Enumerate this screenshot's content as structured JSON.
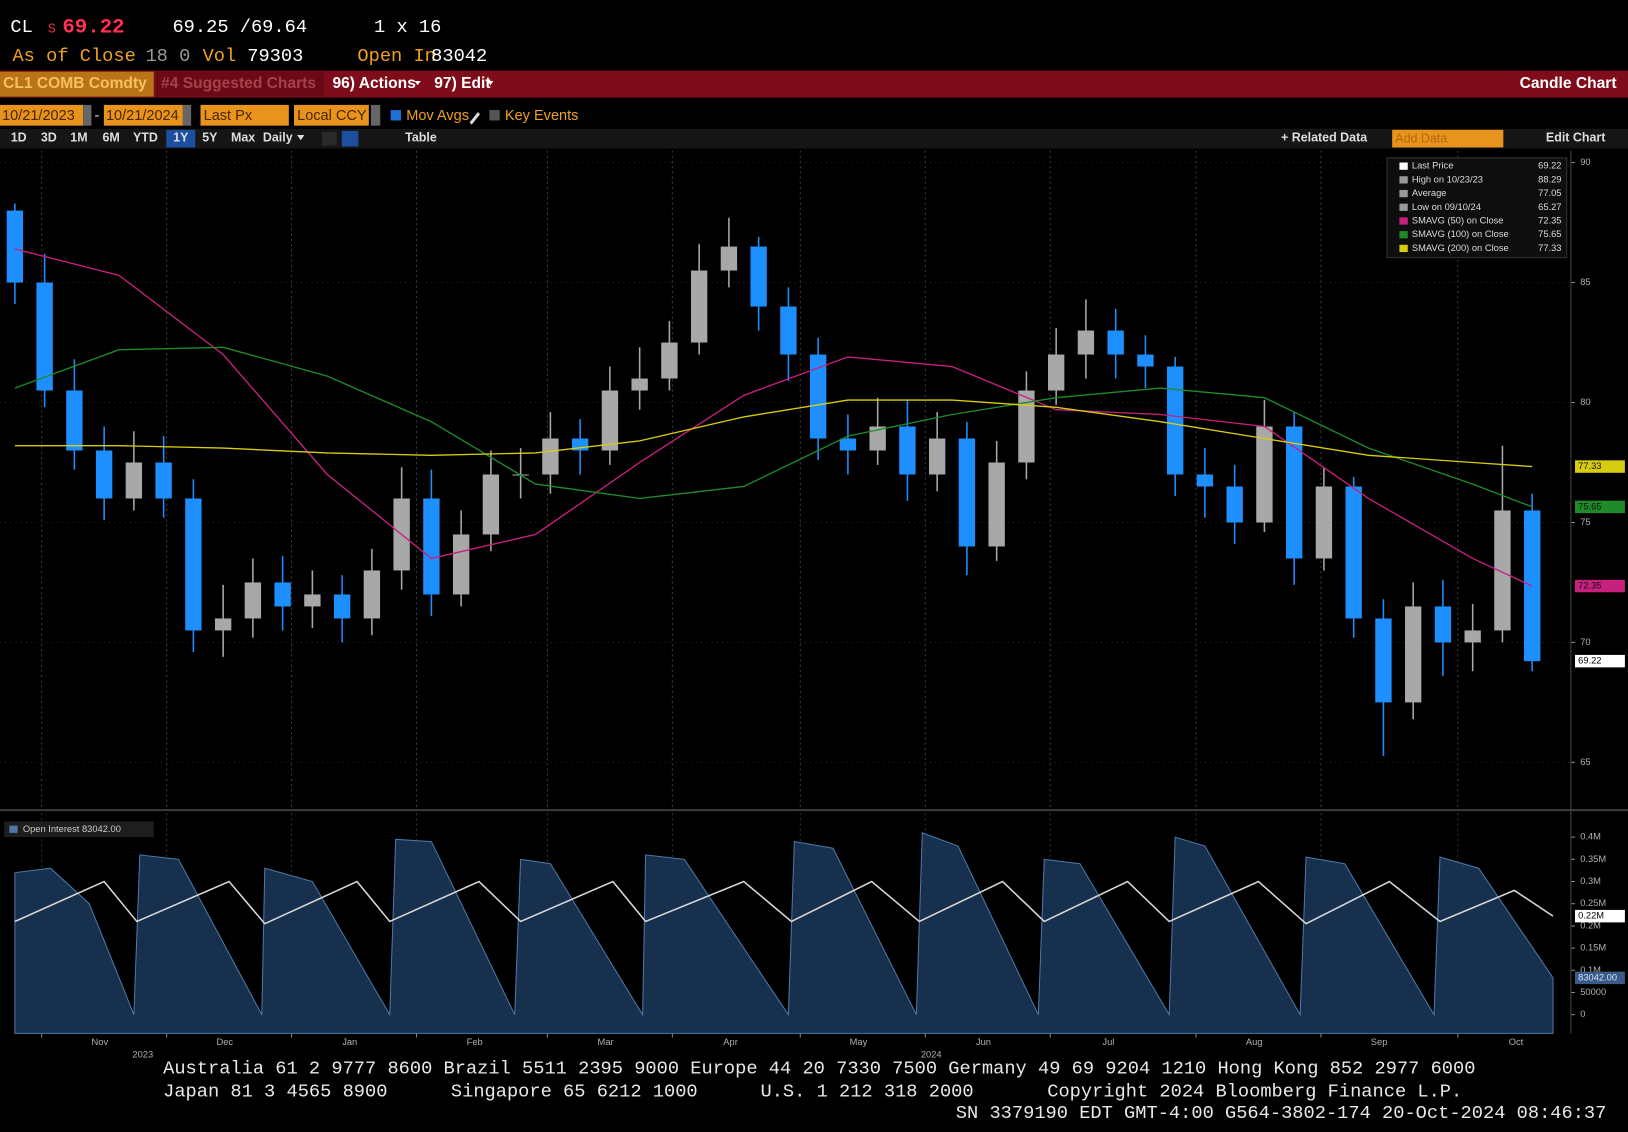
{
  "header": {
    "ticker": "CL",
    "price_flag": "S",
    "last": "69.22",
    "bid_ask": "69.25 /69.64",
    "size": "1 x 16",
    "close_label": "As of Close",
    "time": "18 0",
    "vol_label": "Vol",
    "vol": "79303",
    "oi_label": "Open In",
    "oi": "83042"
  },
  "toolbar": {
    "security": "CL1 COMB Comdty",
    "suggested": "#4 Suggested Charts",
    "actions": "96) Actions",
    "edit": "97) Edit",
    "chart_kind": "Candle Chart"
  },
  "controls": {
    "start": "10/21/2023",
    "separator": "-",
    "end": "10/21/2024",
    "field": "Last Px",
    "currency": "Local CCY",
    "mov_avgs": "Mov Avgs",
    "key_events": "Key Events",
    "periods": [
      "1D",
      "3D",
      "1M",
      "6M",
      "YTD",
      "1Y",
      "5Y",
      "Max"
    ],
    "active_period": 5,
    "frequency": "Daily",
    "table": "Table",
    "related": "+ Related Data",
    "add_data": "Add Data",
    "edit_chart": "Edit Chart"
  },
  "chart_data": [
    {
      "type": "candlestick",
      "xlim": [
        -0.5,
        52.3
      ],
      "ylim": [
        63.1,
        90.5
      ],
      "yticks": [
        65,
        70,
        75,
        80,
        85,
        90
      ],
      "up_color": "#a8a8a8",
      "down_color": "#1e8fff",
      "grid": true,
      "open": [
        88,
        85,
        80.5,
        78,
        76,
        77.5,
        76,
        70.5,
        71,
        72.5,
        71.5,
        72,
        71,
        73,
        76,
        72,
        74.5,
        77,
        77,
        78.5,
        78,
        80.5,
        81,
        82.5,
        85.5,
        86.5,
        84,
        82,
        78.5,
        78,
        79,
        77,
        78.5,
        74,
        77.5,
        80.5,
        82,
        83,
        82,
        81.5,
        77,
        76.5,
        75,
        79,
        73.5,
        76.5,
        71,
        67.5,
        71.5,
        70,
        70.5,
        75.5
      ],
      "high": [
        88.29,
        86.2,
        81.8,
        79,
        78.8,
        78.6,
        76.8,
        72.4,
        73.5,
        73.6,
        73,
        72.8,
        73.9,
        77.3,
        77.2,
        75.5,
        78,
        78.1,
        79.6,
        79.3,
        81.5,
        82.3,
        83.4,
        86.6,
        87.7,
        86.9,
        84.8,
        82.7,
        79.5,
        80.2,
        80.1,
        79.6,
        79.2,
        78.4,
        81.3,
        83.1,
        84.3,
        83.9,
        82.8,
        81.9,
        78.1,
        77.4,
        80.1,
        79.6,
        77.3,
        76.9,
        71.8,
        72.5,
        72.6,
        71.6,
        78.2,
        76.2
      ],
      "low": [
        84.1,
        79.8,
        77.2,
        75.1,
        75.5,
        75.2,
        69.6,
        69.4,
        70.2,
        70.5,
        70.6,
        70,
        70.3,
        72.2,
        71.1,
        71.5,
        73.8,
        76,
        76.2,
        77,
        77.4,
        79.7,
        80.5,
        82,
        84.8,
        83,
        80.9,
        77.6,
        77,
        77.4,
        75.9,
        76.3,
        72.8,
        73.4,
        76.8,
        79.9,
        81,
        81,
        80.6,
        76.1,
        75.2,
        74.1,
        74.6,
        72.4,
        73,
        70.2,
        65.27,
        66.8,
        68.6,
        68.8,
        70,
        68.8
      ],
      "close": [
        85,
        80.5,
        78,
        76,
        77.5,
        76,
        70.5,
        71,
        72.5,
        71.5,
        72,
        71,
        73,
        76,
        72,
        74.5,
        77,
        77,
        78.5,
        78,
        80.5,
        81,
        82.5,
        85.5,
        86.5,
        84,
        82,
        78.5,
        78,
        79,
        77,
        78.5,
        74,
        77.5,
        80.5,
        82,
        83,
        82,
        81.5,
        77,
        76.5,
        75,
        79,
        73.5,
        76.5,
        71,
        67.5,
        71.5,
        70,
        70.5,
        75.5,
        69.22
      ],
      "last_tag": "69.22",
      "stats": [
        {
          "label": "Last Price",
          "value": "69.22"
        },
        {
          "label": "High on 10/23/23",
          "value": "88.29"
        },
        {
          "label": "Average",
          "value": "77.05"
        },
        {
          "label": "Low on 09/10/24",
          "value": "65.27"
        }
      ],
      "series": [
        {
          "name": "SMAVG (50)  on Close",
          "color": "#c8207e",
          "tag": "72.35",
          "x": [
            0,
            3.5,
            7,
            10.5,
            14,
            17.5,
            21,
            24.5,
            28,
            31.5,
            35,
            38.5,
            42,
            45.5,
            49,
            51
          ],
          "values": [
            86.4,
            85.3,
            82,
            77,
            73.5,
            74.5,
            77.5,
            80.3,
            81.9,
            81.5,
            79.7,
            79.5,
            79,
            76,
            73.5,
            72.35
          ]
        },
        {
          "name": "SMAVG (100)  on Close",
          "color": "#1e8a2a",
          "tag": "75.65",
          "x": [
            0,
            3.5,
            7,
            10.5,
            14,
            17.5,
            21,
            24.5,
            28,
            31.5,
            35,
            38.5,
            42,
            45.5,
            49,
            51
          ],
          "values": [
            80.6,
            82.2,
            82.3,
            81.1,
            79.2,
            76.6,
            76,
            76.5,
            78.6,
            79.5,
            80.2,
            80.6,
            80.2,
            78.1,
            76.6,
            75.65
          ]
        },
        {
          "name": "SMAVG (200)  on Close",
          "color": "#d8cc10",
          "tag": "77.33",
          "x": [
            0,
            3.5,
            7,
            10.5,
            14,
            17.5,
            21,
            24.5,
            28,
            31.5,
            35,
            38.5,
            42,
            45.5,
            49,
            51
          ],
          "values": [
            78.2,
            78.2,
            78.1,
            77.9,
            77.8,
            77.9,
            78.4,
            79.4,
            80.1,
            80.1,
            79.8,
            79.2,
            78.5,
            77.8,
            77.5,
            77.33
          ]
        }
      ]
    },
    {
      "type": "area",
      "xlim": [
        -0.5,
        52.3
      ],
      "ylim": [
        -42000,
        454000
      ],
      "yticks": [
        0,
        50000,
        {
          "value": 100000,
          "label": "0.1M"
        },
        {
          "value": 150000,
          "label": "0.15M"
        },
        {
          "value": 200000,
          "label": "0.2M"
        },
        {
          "value": 250000,
          "label": "0.25M"
        },
        {
          "value": 300000,
          "label": "0.3M"
        },
        {
          "value": 350000,
          "label": "0.35M"
        },
        {
          "value": 400000,
          "label": "0.4M"
        }
      ],
      "xticks": [
        {
          "value": 0.9,
          "label": "Nov"
        },
        {
          "value": 5.1,
          "label": "Dec"
        },
        {
          "value": 9.3,
          "label": "Jan"
        },
        {
          "value": 13.5,
          "label": "Feb"
        },
        {
          "value": 17.9,
          "label": "Mar"
        },
        {
          "value": 22.1,
          "label": "Apr"
        },
        {
          "value": 26.4,
          "label": "May"
        },
        {
          "value": 30.6,
          "label": "Jun"
        },
        {
          "value": 34.8,
          "label": "Jul"
        },
        {
          "value": 39.7,
          "label": "Aug"
        },
        {
          "value": 43.9,
          "label": "Sep"
        },
        {
          "value": 48.5,
          "label": "Oct"
        }
      ],
      "year_labels": [
        {
          "value": 4.3,
          "label": "2023"
        },
        {
          "value": 30.8,
          "label": "2024"
        }
      ],
      "series": [
        {
          "name": "Open Interest 83042.00",
          "color": "#17304d",
          "tag": "83042.00",
          "x": [
            0,
            1.2,
            2.5,
            4.0,
            4.2,
            5.5,
            8.3,
            8.4,
            10,
            12.6,
            12.8,
            14,
            16.8,
            17,
            18,
            21.1,
            21.2,
            22.5,
            26,
            26.2,
            27.5,
            30.3,
            30.5,
            31.7,
            34.4,
            34.6,
            35.8,
            38.8,
            39,
            40,
            43.2,
            43.4,
            44.7,
            47.7,
            47.9,
            49.2,
            51.7
          ],
          "values": [
            320000,
            330000,
            250000,
            0,
            360000,
            350000,
            0,
            330000,
            300000,
            0,
            395000,
            390000,
            0,
            350000,
            340000,
            0,
            360000,
            350000,
            0,
            390000,
            375000,
            0,
            410000,
            380000,
            0,
            350000,
            340000,
            0,
            400000,
            380000,
            0,
            355000,
            340000,
            0,
            355000,
            330000,
            83042
          ]
        },
        {
          "type": "line",
          "color": "#d8d8d8",
          "tag": "0.22M",
          "x": [
            0,
            3.0,
            4.1,
            7.2,
            8.4,
            11.5,
            12.6,
            15.6,
            17,
            20.1,
            21.2,
            24.5,
            26.1,
            28.8,
            30.4,
            33.2,
            34.6,
            37.4,
            38.8,
            41.8,
            43.4,
            46.2,
            47.9,
            50.4,
            51.7
          ],
          "values": [
            210000,
            300000,
            210000,
            300000,
            205000,
            300000,
            210000,
            300000,
            210000,
            300000,
            210000,
            300000,
            210000,
            300000,
            210000,
            300000,
            210000,
            300000,
            210000,
            300000,
            205000,
            300000,
            210000,
            280000,
            222000
          ]
        }
      ]
    }
  ],
  "footer": {
    "line1": "Australia 61 2 9777 8600 Brazil 5511 2395 9000 Europe 44 20 7330 7500 Germany 49 69 9204 1210 Hong Kong 852 2977 6000",
    "japan": "Japan 81 3 4565 8900",
    "singapore": "Singapore 65 6212 1000",
    "us": "U.S. 1 212 318 2000",
    "copyright": "Copyright 2024 Bloomberg Finance L.P.",
    "line3": "SN 3379190 EDT  GMT-4:00 G564-3802-174 20-Oct-2024 08:46:37"
  }
}
